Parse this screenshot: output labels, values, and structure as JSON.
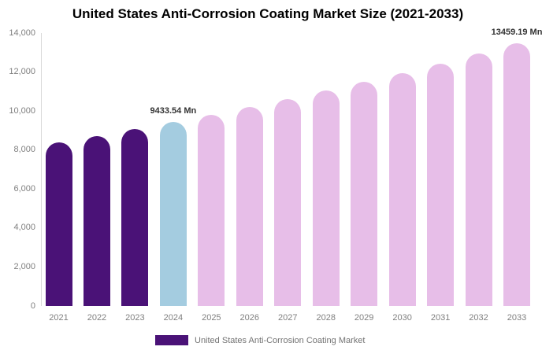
{
  "chart_data": {
    "type": "bar",
    "title": "United States Anti-Corrosion Coating Market Size (2021-2033)",
    "categories": [
      "2021",
      "2022",
      "2023",
      "2024",
      "2025",
      "2026",
      "2027",
      "2028",
      "2029",
      "2030",
      "2031",
      "2032",
      "2033"
    ],
    "values": [
      8380,
      8720,
      9070,
      9433.54,
      9810,
      10200,
      10620,
      11050,
      11490,
      11960,
      12440,
      12940,
      13459.19
    ],
    "series_name": "United States Anti-Corrosion Coating Market",
    "unit": "Mn",
    "xlabel": "",
    "ylabel": "",
    "ylim": [
      0,
      14000
    ],
    "ytick_interval": 2000,
    "ytick_labels": [
      "0",
      "2,000",
      "4,000",
      "6,000",
      "8,000",
      "10,000",
      "12,000",
      "14,000"
    ],
    "grid": "off",
    "legend_position": "bottom",
    "annotations": [
      {
        "category": "2024",
        "text": "9433.54 Mn"
      },
      {
        "category": "2033",
        "text": "13459.19 Mn"
      }
    ],
    "colors": {
      "historical": "#4A1277",
      "highlight": "#A4CCE0",
      "forecast": "#E7BEE8"
    },
    "bar_roles": [
      "historical",
      "historical",
      "historical",
      "highlight",
      "forecast",
      "forecast",
      "forecast",
      "forecast",
      "forecast",
      "forecast",
      "forecast",
      "forecast",
      "forecast"
    ],
    "axis_colors": {
      "tick_label": "#7f7f7f",
      "axis_line": "#d9d9d9",
      "data_label": "#333333"
    }
  }
}
